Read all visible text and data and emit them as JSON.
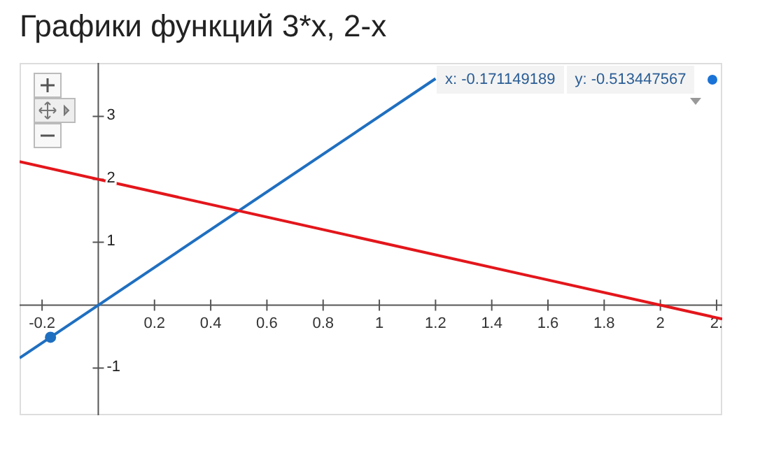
{
  "chart_data": {
    "type": "line",
    "title": "Графики функций 3*x, 2-x",
    "xlim": [
      -0.28,
      2.22
    ],
    "ylim": [
      -1.75,
      3.85
    ],
    "xticks": [
      -0.2,
      0.2,
      0.4,
      0.6,
      0.8,
      1,
      1.2,
      1.4,
      1.6,
      1.8,
      2,
      {
        "value": 2.2,
        "label": "2."
      }
    ],
    "yticks": [
      -1,
      1,
      2,
      3
    ],
    "line_style": "solid",
    "series": [
      {
        "color": "#1f6fc0",
        "x": [
          -0.28,
          1.2
        ],
        "values": [
          -0.84,
          3.6
        ]
      },
      {
        "color": "#e3161b",
        "x": [
          -0.28,
          2.22
        ],
        "values": [
          2.28,
          -0.22
        ]
      },
      {
        "type": "scatter",
        "marker": "circle",
        "color": "#1f6fc0",
        "x": [
          -0.17
        ],
        "values": [
          -0.51
        ]
      }
    ],
    "annotations": [
      "x: -0.171149189",
      "y: -0.513447567"
    ]
  }
}
